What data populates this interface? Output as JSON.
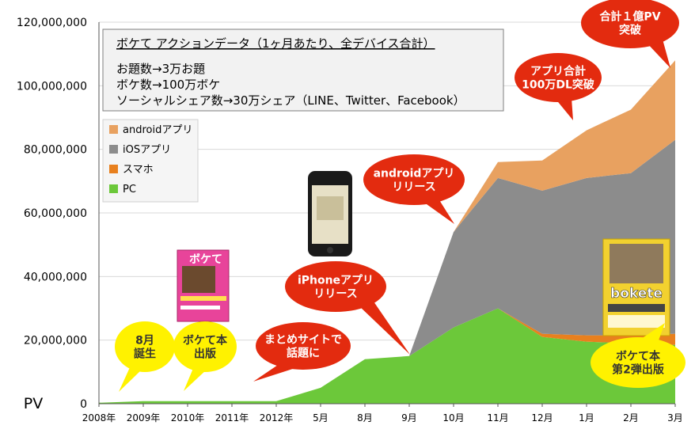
{
  "chart_data": {
    "type": "area",
    "stacked": true,
    "ylabel": "PV",
    "ylim": [
      0,
      120000000
    ],
    "yticks": [
      0,
      20000000,
      40000000,
      60000000,
      80000000,
      100000000,
      120000000
    ],
    "ytick_labels": [
      "0",
      "20,000,000",
      "40,000,000",
      "60,000,000",
      "80,000,000",
      "100,000,000",
      "120,000,000"
    ],
    "categories": [
      "2008年",
      "2009年",
      "2010年",
      "2011年",
      "2012年",
      "5月",
      "8月",
      "9月",
      "10月",
      "11月",
      "12月",
      "1月",
      "2月",
      "3月"
    ],
    "series": [
      {
        "name": "PC",
        "color": "#6cc83a",
        "values": [
          300000,
          800000,
          800000,
          800000,
          800000,
          5000000,
          14000000,
          15000000,
          24000000,
          30000000,
          21000000,
          19500000,
          19000000,
          18500000
        ]
      },
      {
        "name": "スマホ",
        "color": "#e8801e",
        "values": [
          0,
          0,
          0,
          0,
          0,
          0,
          0,
          0,
          0,
          0,
          1000000,
          2000000,
          2500000,
          3500000
        ]
      },
      {
        "name": "iOSアプリ",
        "color": "#8c8c8c",
        "values": [
          0,
          0,
          0,
          0,
          0,
          0,
          0,
          0,
          30000000,
          41000000,
          45000000,
          49500000,
          51000000,
          61000000
        ]
      },
      {
        "name": "androidアプリ",
        "color": "#e8a160",
        "values": [
          0,
          0,
          0,
          0,
          0,
          0,
          0,
          0,
          0,
          5000000,
          9500000,
          15000000,
          20000000,
          25000000
        ]
      }
    ],
    "legend_position": "left",
    "legend_order": [
      "androidアプリ",
      "iOSアプリ",
      "スマホ",
      "PC"
    ],
    "info_box": {
      "title": "ボケて アクションデータ（1ヶ月あたり、全デバイス合計）",
      "lines": [
        "お題数→3万お題",
        "ボケ数→100万ボケ",
        "ソーシャルシェア数→30万シェア（LINE、Twitter、Facebook）"
      ]
    },
    "annotations": [
      {
        "lines": [
          "8月",
          "誕生"
        ],
        "color": "#fff200",
        "text_color": "#333333"
      },
      {
        "lines": [
          "ボケて本",
          "出版"
        ],
        "color": "#fff200",
        "text_color": "#333333"
      },
      {
        "lines": [
          "まとめサイトで",
          "話題に"
        ],
        "color": "#e32b0f",
        "text_color": "#ffffff"
      },
      {
        "lines": [
          "iPhoneアプリ",
          "リリース"
        ],
        "color": "#e32b0f",
        "text_color": "#ffffff"
      },
      {
        "lines": [
          "androidアプリ",
          "リリース"
        ],
        "color": "#e32b0f",
        "text_color": "#ffffff"
      },
      {
        "lines": [
          "アプリ合計",
          "100万DL突破"
        ],
        "color": "#e32b0f",
        "text_color": "#ffffff"
      },
      {
        "lines": [
          "合計１億PV",
          "突破"
        ],
        "color": "#e32b0f",
        "text_color": "#ffffff"
      },
      {
        "lines": [
          "ボケて本",
          "第2弾出版"
        ],
        "color": "#fff200",
        "text_color": "#333333"
      }
    ],
    "images": [
      {
        "name": "boketebook-image",
        "label": "ボケて"
      },
      {
        "name": "iphone-image",
        "label": ""
      },
      {
        "name": "bokete2-book-image",
        "label": "bokete"
      }
    ]
  }
}
